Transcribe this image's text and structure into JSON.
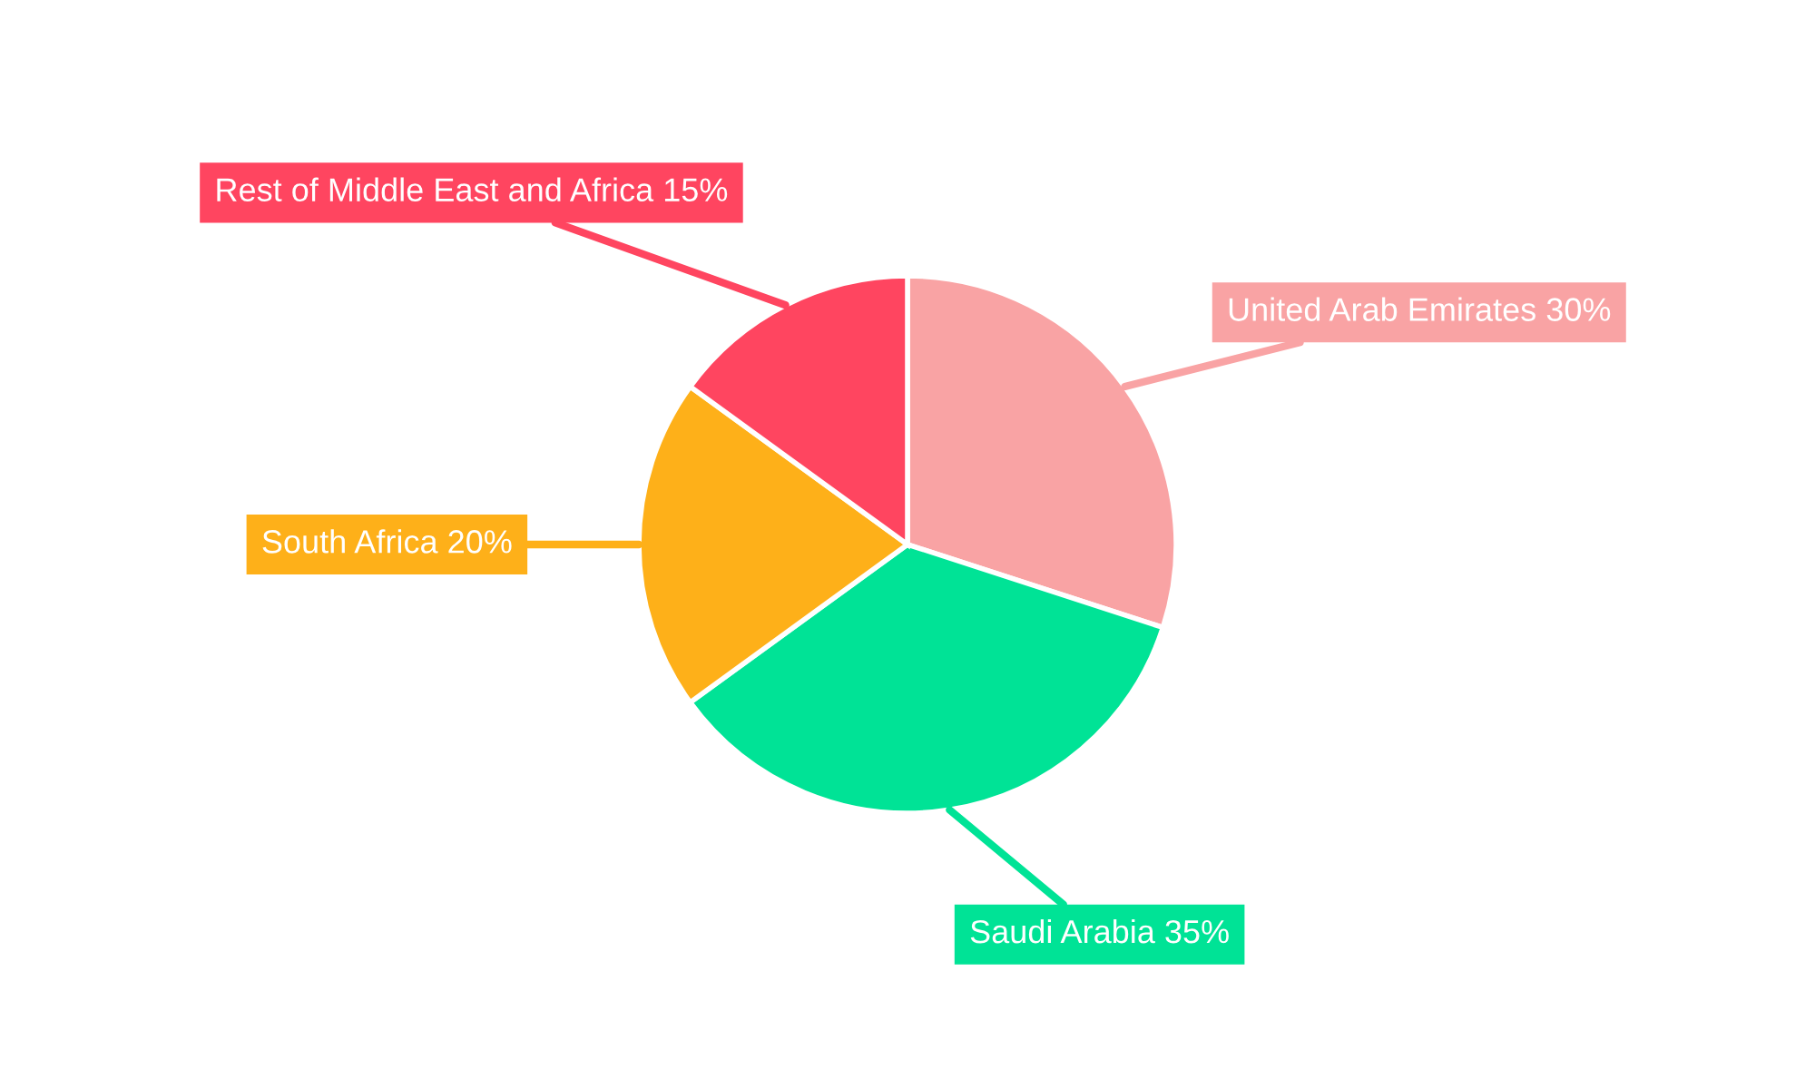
{
  "chart_data": {
    "type": "pie",
    "categories": [
      "United Arab Emirates",
      "Saudi Arabia",
      "South Africa",
      "Rest of Middle East and Africa"
    ],
    "values": [
      30,
      35,
      20,
      15
    ],
    "value_labels": [
      "30%",
      "35%",
      "20%",
      "15%"
    ],
    "colors": [
      "#f9a3a4",
      "#00e396",
      "#feb019",
      "#ff4560"
    ],
    "legend": false
  }
}
